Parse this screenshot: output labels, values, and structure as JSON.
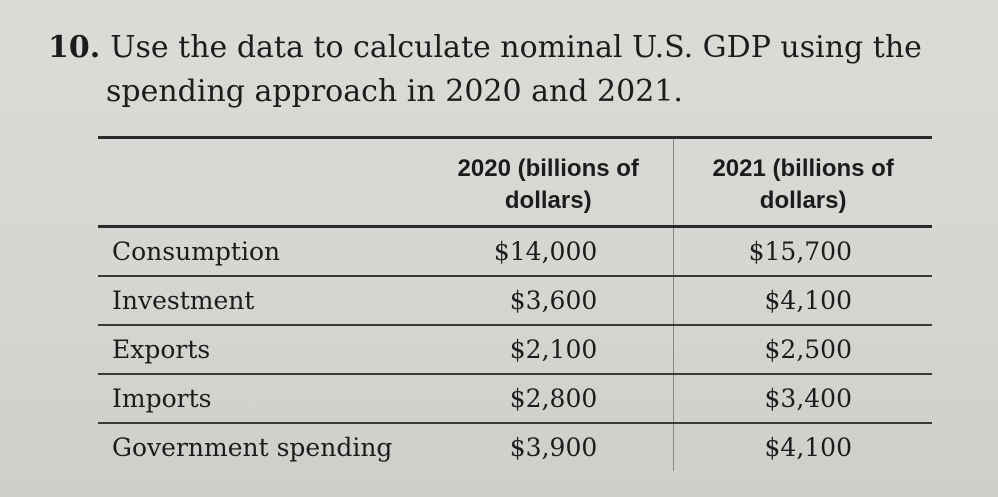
{
  "question": {
    "number": "10.",
    "line1": "Use the data to calculate nominal U.S. GDP using the",
    "line2": "spending approach in 2020 and 2021."
  },
  "table": {
    "headers": {
      "col1": "",
      "col2": "2020 (billions of dollars)",
      "col3": "2021 (billions of dollars)"
    },
    "rows": [
      {
        "label": "Consumption",
        "v2020": "$14,000",
        "v2021": "$15,700"
      },
      {
        "label": "Investment",
        "v2020": "$3,600",
        "v2021": "$4,100"
      },
      {
        "label": "Exports",
        "v2020": "$2,100",
        "v2021": "$2,500"
      },
      {
        "label": "Imports",
        "v2020": "$2,800",
        "v2021": "$3,400"
      },
      {
        "label": "Government spending",
        "v2020": "$3,900",
        "v2021": "$4,100"
      }
    ]
  }
}
